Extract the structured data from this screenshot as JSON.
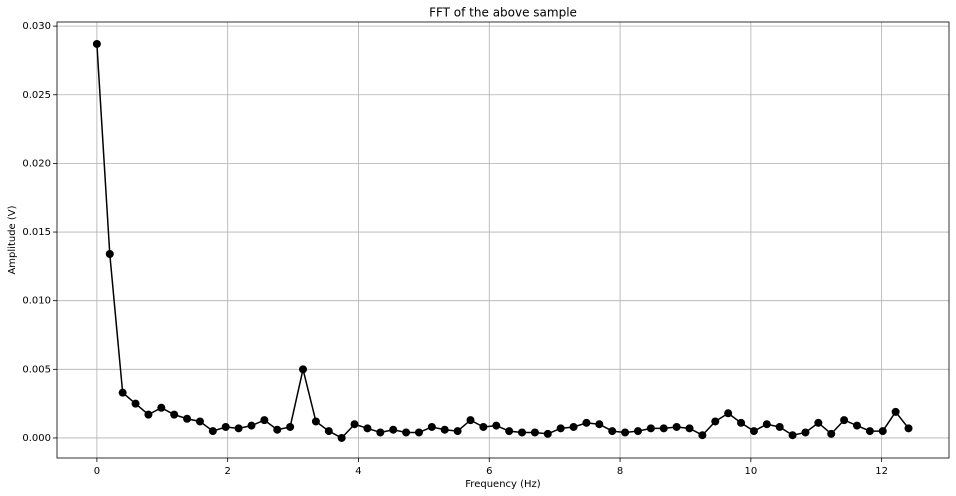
{
  "chart_data": {
    "type": "line",
    "title": "FFT of the above sample",
    "x_label": "Frequency (Hz)",
    "y_label": "Amplitude (V)",
    "x": [
      0,
      0.197,
      0.394,
      0.591,
      0.788,
      0.985,
      1.182,
      1.379,
      1.576,
      1.773,
      1.97,
      2.167,
      2.364,
      2.561,
      2.758,
      2.955,
      3.152,
      3.349,
      3.546,
      3.743,
      3.94,
      4.137,
      4.334,
      4.531,
      4.728,
      4.925,
      5.122,
      5.319,
      5.516,
      5.713,
      5.91,
      6.107,
      6.304,
      6.501,
      6.698,
      6.895,
      7.092,
      7.289,
      7.486,
      7.683,
      7.88,
      8.077,
      8.274,
      8.471,
      8.668,
      8.865,
      9.062,
      9.259,
      9.456,
      9.653,
      9.85,
      10.047,
      10.244,
      10.441,
      10.638,
      10.835,
      11.032,
      11.229,
      11.426,
      11.623,
      11.82,
      12.017,
      12.214,
      12.411
    ],
    "series": [
      {
        "name": "FFT",
        "color": "#000000",
        "marker": "circle",
        "values": [
          0.0287,
          0.0134,
          0.0033,
          0.0025,
          0.0017,
          0.0022,
          0.0017,
          0.0014,
          0.0012,
          0.0005,
          0.0008,
          0.0007,
          0.0009,
          0.0013,
          0.0006,
          0.0008,
          0.005,
          0.0012,
          0.0005,
          0.0,
          0.001,
          0.0007,
          0.0004,
          0.0006,
          0.0004,
          0.0004,
          0.0008,
          0.0006,
          0.0005,
          0.0013,
          0.0008,
          0.0009,
          0.0005,
          0.0004,
          0.0004,
          0.0003,
          0.0007,
          0.0008,
          0.0011,
          0.001,
          0.0005,
          0.0004,
          0.0005,
          0.0007,
          0.0007,
          0.0008,
          0.0007,
          0.0002,
          0.0012,
          0.0018,
          0.0011,
          0.0005,
          0.001,
          0.0008,
          0.0002,
          0.0004,
          0.0011,
          0.0003,
          0.0013,
          0.0009,
          0.0005,
          0.0005,
          0.0019,
          0.0007
        ]
      }
    ],
    "xlim": [
      -0.61,
      13.03
    ],
    "ylim": [
      -0.00146,
      0.0303
    ],
    "xticks": [
      0,
      2,
      4,
      6,
      8,
      10,
      12
    ],
    "yticks": [
      {
        "value": 0,
        "label": "0.000"
      },
      {
        "value": 0.005,
        "label": "0.005"
      },
      {
        "value": 0.01,
        "label": "0.010"
      },
      {
        "value": 0.015,
        "label": "0.015"
      },
      {
        "value": 0.02,
        "label": "0.020"
      },
      {
        "value": 0.025,
        "label": "0.025"
      },
      {
        "value": 0.03,
        "label": "0.030"
      }
    ],
    "grid": true
  }
}
